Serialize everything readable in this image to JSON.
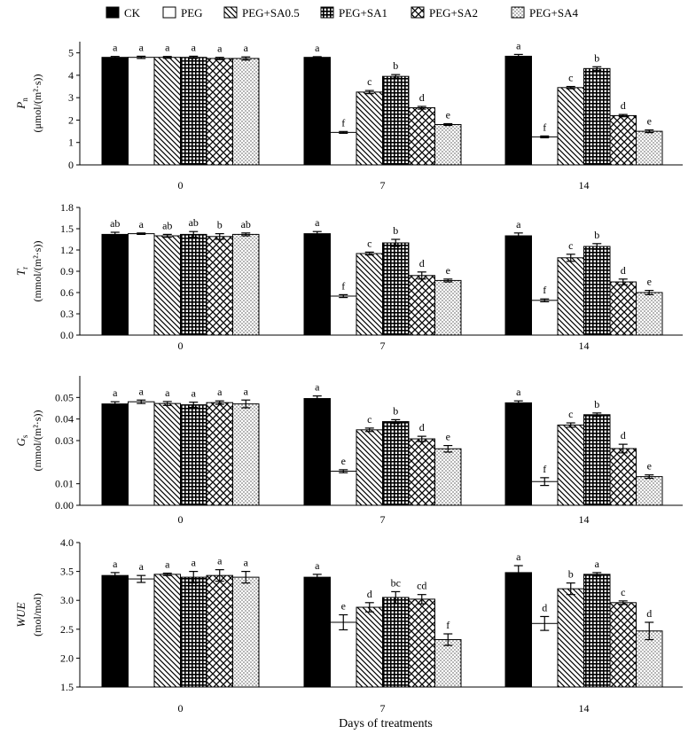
{
  "legend": [
    {
      "name": "CK",
      "pattern": "solid"
    },
    {
      "name": "PEG",
      "pattern": "white"
    },
    {
      "name": "PEG+SA0.5",
      "pattern": "diag"
    },
    {
      "name": "PEG+SA1",
      "pattern": "grid"
    },
    {
      "name": "PEG+SA2",
      "pattern": "zigzag"
    },
    {
      "name": "PEG+SA4",
      "pattern": "dots"
    }
  ],
  "x_axis_title": "Days of treatments",
  "chart_data": [
    {
      "type": "bar",
      "ylabel_symbol": "P",
      "ylabel_sub": "n",
      "ylabel_unit": "(μmol/(m²·s))",
      "categories": [
        "0",
        "7",
        "14"
      ],
      "ylim": [
        0,
        5.5
      ],
      "yticks": [
        "0",
        "1",
        "2",
        "3",
        "4",
        "5"
      ],
      "series": [
        {
          "name": "CK",
          "values": [
            4.8,
            4.8,
            4.85
          ],
          "errors": [
            0.04,
            0.03,
            0.08
          ],
          "letters": [
            "a",
            "a",
            "a"
          ]
        },
        {
          "name": "PEG",
          "values": [
            4.8,
            1.45,
            1.25
          ],
          "errors": [
            0.05,
            0.04,
            0.04
          ],
          "letters": [
            "a",
            "f",
            "f"
          ]
        },
        {
          "name": "PEG+SA0.5",
          "values": [
            4.8,
            3.25,
            3.45
          ],
          "errors": [
            0.04,
            0.07,
            0.05
          ],
          "letters": [
            "a",
            "c",
            "c"
          ]
        },
        {
          "name": "PEG+SA1",
          "values": [
            4.8,
            3.95,
            4.3
          ],
          "errors": [
            0.05,
            0.08,
            0.08
          ],
          "letters": [
            "a",
            "b",
            "b"
          ]
        },
        {
          "name": "PEG+SA2",
          "values": [
            4.75,
            2.55,
            2.2
          ],
          "errors": [
            0.05,
            0.06,
            0.05
          ],
          "letters": [
            "a",
            "d",
            "d"
          ]
        },
        {
          "name": "PEG+SA4",
          "values": [
            4.75,
            1.8,
            1.5
          ],
          "errors": [
            0.07,
            0.04,
            0.06
          ],
          "letters": [
            "a",
            "e",
            "e"
          ]
        }
      ]
    },
    {
      "type": "bar",
      "ylabel_symbol": "T",
      "ylabel_sub": "r",
      "ylabel_unit": "(mmol/(m²·s))",
      "categories": [
        "0",
        "7",
        "14"
      ],
      "ylim": [
        0,
        1.8
      ],
      "yticks": [
        "0.0",
        "0.3",
        "0.6",
        "0.9",
        "1.2",
        "1.5",
        "1.8"
      ],
      "series": [
        {
          "name": "CK",
          "values": [
            1.42,
            1.43,
            1.4
          ],
          "errors": [
            0.03,
            0.03,
            0.04
          ],
          "letters": [
            "ab",
            "a",
            "a"
          ]
        },
        {
          "name": "PEG",
          "values": [
            1.43,
            0.55,
            0.49
          ],
          "errors": [
            0.01,
            0.02,
            0.02
          ],
          "letters": [
            "a",
            "f",
            "f"
          ]
        },
        {
          "name": "PEG+SA0.5",
          "values": [
            1.4,
            1.15,
            1.09
          ],
          "errors": [
            0.02,
            0.02,
            0.05
          ],
          "letters": [
            "ab",
            "c",
            "c"
          ]
        },
        {
          "name": "PEG+SA1",
          "values": [
            1.42,
            1.3,
            1.25
          ],
          "errors": [
            0.04,
            0.05,
            0.04
          ],
          "letters": [
            "ab",
            "b",
            "b"
          ]
        },
        {
          "name": "PEG+SA2",
          "values": [
            1.39,
            0.84,
            0.75
          ],
          "errors": [
            0.04,
            0.05,
            0.04
          ],
          "letters": [
            "b",
            "d",
            "d"
          ]
        },
        {
          "name": "PEG+SA4",
          "values": [
            1.42,
            0.77,
            0.6
          ],
          "errors": [
            0.02,
            0.02,
            0.03
          ],
          "letters": [
            "ab",
            "e",
            "e"
          ]
        }
      ]
    },
    {
      "type": "bar",
      "ylabel_symbol": "G",
      "ylabel_sub": "s",
      "ylabel_unit": "(mmol/(m²·s))",
      "categories": [
        "0",
        "7",
        "14"
      ],
      "ylim": [
        0,
        0.06
      ],
      "yticks": [
        "0.00",
        "0.01",
        "0.03",
        "0.04",
        "0.05"
      ],
      "ytick_values": [
        0,
        0.01,
        0.03,
        0.04,
        0.05
      ],
      "series": [
        {
          "name": "CK",
          "values": [
            0.047,
            0.0495,
            0.0475
          ],
          "errors": [
            0.001,
            0.0012,
            0.0009
          ],
          "letters": [
            "a",
            "a",
            "a"
          ]
        },
        {
          "name": "PEG",
          "values": [
            0.048,
            0.0158,
            0.011
          ],
          "errors": [
            0.0008,
            0.0007,
            0.0018
          ],
          "letters": [
            "a",
            "e",
            "f"
          ]
        },
        {
          "name": "PEG+SA0.5",
          "values": [
            0.0472,
            0.035,
            0.0372
          ],
          "errors": [
            0.0009,
            0.0008,
            0.001
          ],
          "letters": [
            "a",
            "c",
            "c"
          ]
        },
        {
          "name": "PEG+SA1",
          "values": [
            0.0466,
            0.0388,
            0.042
          ],
          "errors": [
            0.0012,
            0.0009,
            0.0008
          ],
          "letters": [
            "a",
            "b",
            "b"
          ]
        },
        {
          "name": "PEG+SA2",
          "values": [
            0.0476,
            0.0308,
            0.0263
          ],
          "errors": [
            0.0008,
            0.0012,
            0.002
          ],
          "letters": [
            "a",
            "d",
            "d"
          ]
        },
        {
          "name": "PEG+SA4",
          "values": [
            0.047,
            0.0262,
            0.0133
          ],
          "errors": [
            0.0018,
            0.0015,
            0.0008
          ],
          "letters": [
            "a",
            "e",
            "e"
          ]
        }
      ]
    },
    {
      "type": "bar",
      "ylabel_symbol": "WUE",
      "ylabel_sub": "",
      "ylabel_unit": "(mol/mol)",
      "categories": [
        "0",
        "7",
        "14"
      ],
      "ylim": [
        1.5,
        4.0
      ],
      "yticks": [
        "1.5",
        "2.0",
        "2.5",
        "3.0",
        "3.5",
        "4.0"
      ],
      "series": [
        {
          "name": "CK",
          "values": [
            3.43,
            3.4,
            3.48
          ],
          "errors": [
            0.05,
            0.05,
            0.12
          ],
          "letters": [
            "a",
            "a",
            "a"
          ]
        },
        {
          "name": "PEG",
          "values": [
            3.37,
            2.62,
            2.6
          ],
          "errors": [
            0.06,
            0.13,
            0.12
          ],
          "letters": [
            "a",
            "e",
            "d"
          ]
        },
        {
          "name": "PEG+SA0.5",
          "values": [
            3.45,
            2.88,
            3.2
          ],
          "errors": [
            0.02,
            0.08,
            0.1
          ],
          "letters": [
            "a",
            "d",
            "b"
          ]
        },
        {
          "name": "PEG+SA1",
          "values": [
            3.4,
            3.05,
            3.45
          ],
          "errors": [
            0.1,
            0.1,
            0.03
          ],
          "letters": [
            "a",
            "bc",
            "a"
          ]
        },
        {
          "name": "PEG+SA2",
          "values": [
            3.43,
            3.02,
            2.96
          ],
          "errors": [
            0.1,
            0.08,
            0.03
          ],
          "letters": [
            "a",
            "cd",
            "c"
          ]
        },
        {
          "name": "PEG+SA4",
          "values": [
            3.4,
            2.32,
            2.47
          ],
          "errors": [
            0.1,
            0.1,
            0.15
          ],
          "letters": [
            "a",
            "f",
            "d"
          ]
        }
      ]
    }
  ]
}
